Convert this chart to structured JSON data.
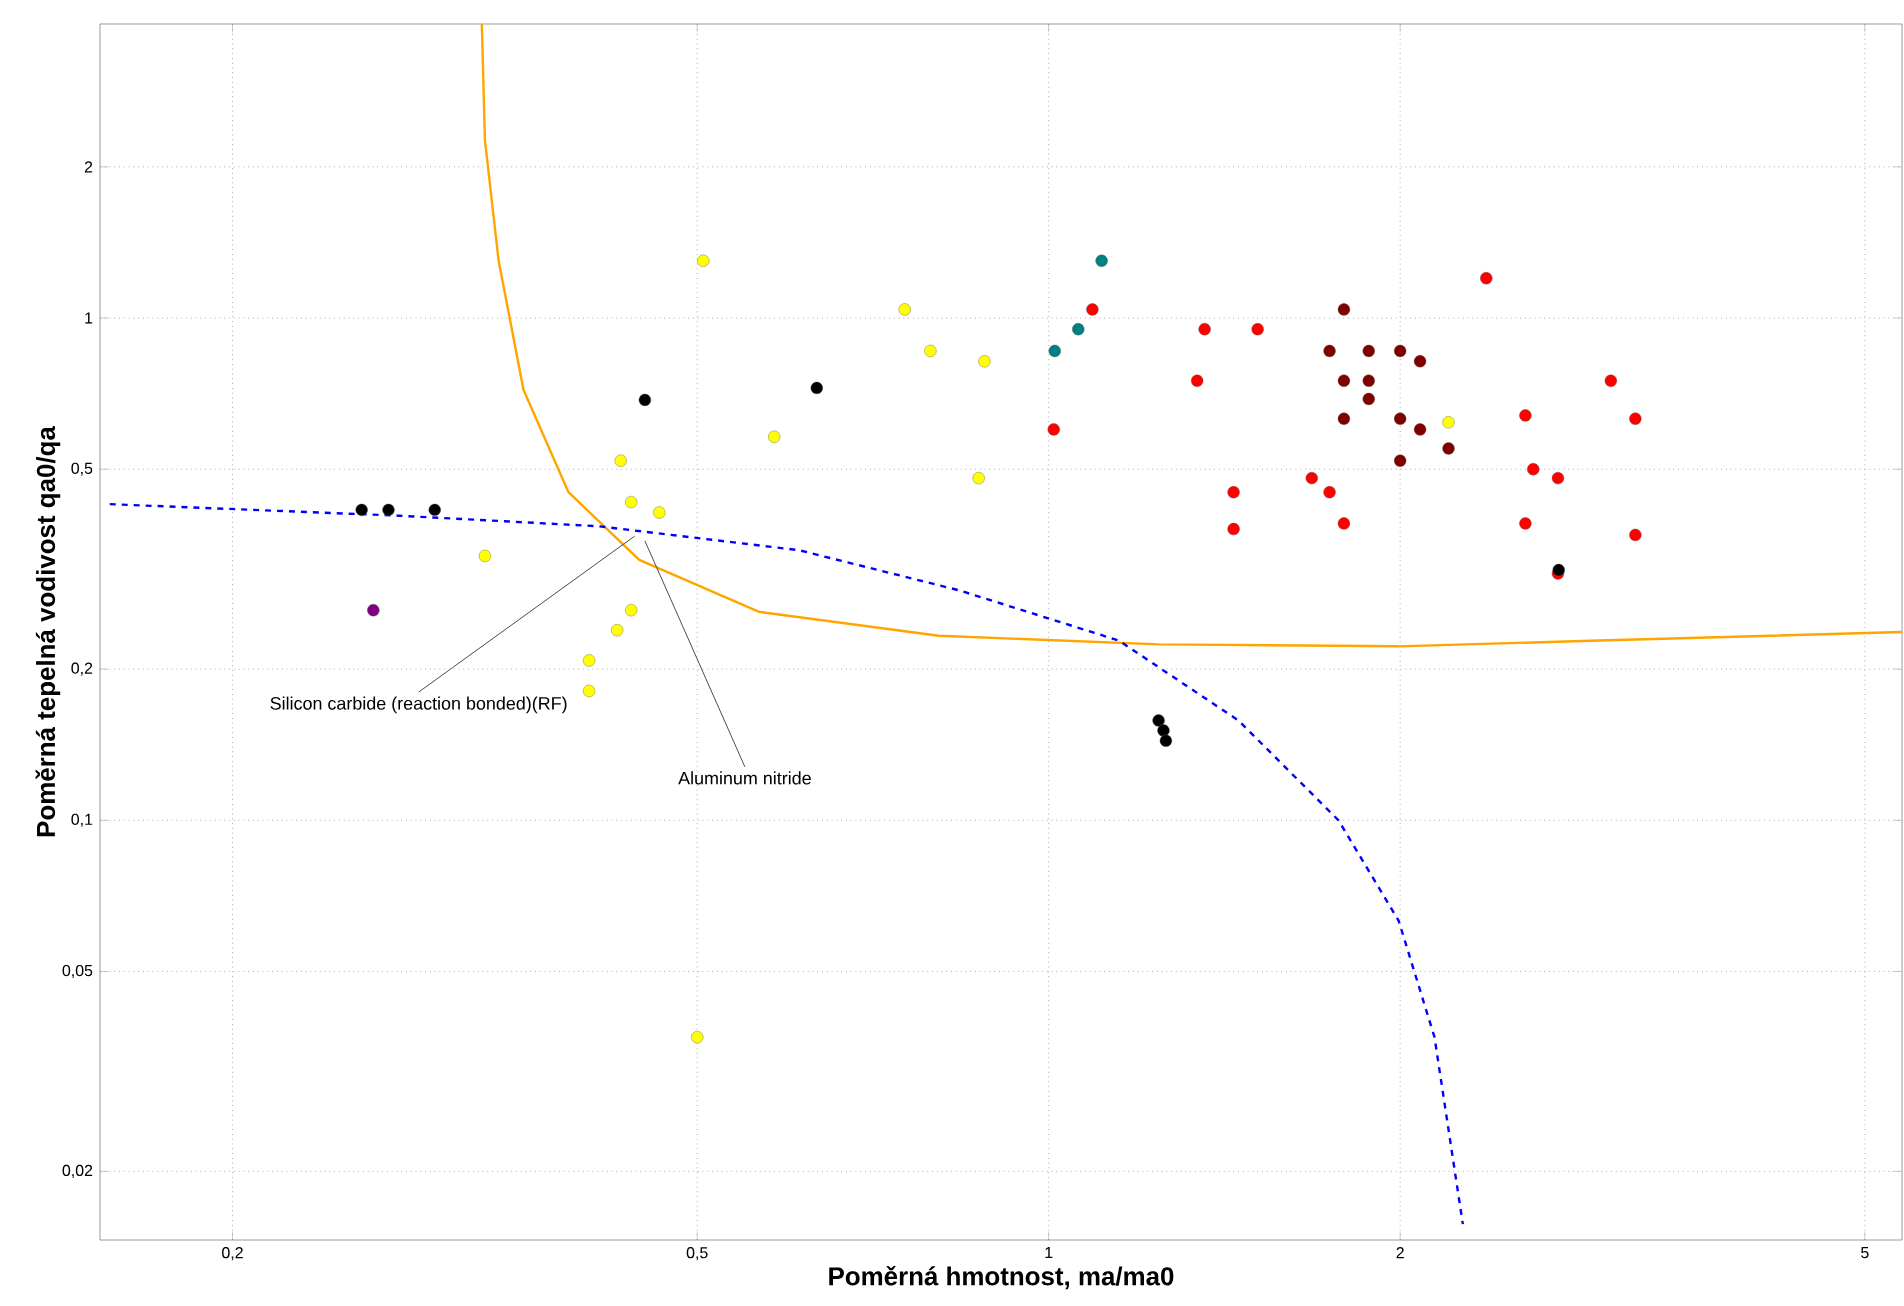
{
  "chart_data": {
    "type": "scatter",
    "xlabel": "Poměrná hmotnost, ma/ma0",
    "ylabel": "Poměrná tepelná vodivost qa0/qa",
    "log": "xy",
    "grid": true,
    "marker": "circle",
    "xlim": [
      0.154,
      5.38
    ],
    "ylim": [
      0.0146,
      3.85
    ],
    "xticks": [
      {
        "value": 0.2,
        "label": "0,2"
      },
      {
        "value": 0.5,
        "label": "0,5"
      },
      1,
      2,
      5
    ],
    "yticks": [
      {
        "value": 0.02,
        "label": "0,02"
      },
      {
        "value": 0.05,
        "label": "0,05"
      },
      {
        "value": 0.1,
        "label": "0,1"
      },
      {
        "value": 0.2,
        "label": "0,2"
      },
      {
        "value": 0.5,
        "label": "0,5"
      },
      1,
      2
    ],
    "series": [
      {
        "color": "#000000",
        "x": [
          0.258,
          0.272,
          0.298,
          0.451,
          0.633,
          1.242,
          1.254,
          1.26,
          2.734
        ],
        "values": [
          0.415,
          0.415,
          0.415,
          0.687,
          0.726,
          0.158,
          0.151,
          0.144,
          0.315
        ]
      },
      {
        "color": "#800080",
        "x": [
          0.264
        ],
        "values": [
          0.262
        ]
      },
      {
        "color": "#ffff00",
        "x": [
          0.329,
          0.439,
          0.43,
          0.464,
          0.439,
          0.427,
          0.404,
          0.404,
          0.506,
          0.582,
          0.753,
          0.792,
          0.871,
          0.881,
          0.5,
          2.2
        ],
        "values": [
          0.336,
          0.43,
          0.52,
          0.41,
          0.262,
          0.239,
          0.208,
          0.181,
          1.3,
          0.58,
          1.04,
          0.86,
          0.48,
          0.82,
          0.037,
          0.62
        ]
      },
      {
        "color": "#008080",
        "x": [
          1.012,
          1.06,
          1.11
        ],
        "values": [
          0.86,
          0.95,
          1.3
        ]
      },
      {
        "color": "#ff0000",
        "x": [
          1.09,
          1.34,
          1.01,
          1.36,
          1.51,
          1.44,
          1.44,
          1.68,
          1.74,
          1.79,
          2.37,
          2.56,
          2.6,
          2.73,
          2.56,
          3.03,
          3.18,
          3.18,
          2.73
        ],
        "values": [
          1.04,
          0.75,
          0.6,
          0.95,
          0.95,
          0.45,
          0.38,
          0.48,
          0.45,
          0.39,
          1.2,
          0.64,
          0.5,
          0.48,
          0.39,
          0.75,
          0.63,
          0.37,
          0.31
        ]
      },
      {
        "color": "#800000",
        "x": [
          1.79,
          1.74,
          1.88,
          1.79,
          1.88,
          2.0,
          2.08,
          1.79,
          1.88,
          2.0,
          2.08,
          2.2,
          2.0
        ],
        "values": [
          1.04,
          0.86,
          0.86,
          0.75,
          0.75,
          0.86,
          0.82,
          0.63,
          0.69,
          0.63,
          0.6,
          0.55,
          0.52
        ]
      },
      {
        "type": "line",
        "color": "#ffa500",
        "marker": "none",
        "line_style": "solid",
        "x": [
          0.327,
          0.329,
          0.338,
          0.355,
          0.388,
          0.446,
          0.565,
          0.805,
          1.242,
          1.995,
          2.96,
          5.38
        ],
        "values": [
          3.85,
          2.26,
          1.3,
          0.72,
          0.45,
          0.33,
          0.26,
          0.233,
          0.224,
          0.222,
          0.228,
          0.237
        ]
      },
      {
        "type": "line",
        "color": "#0000ff",
        "marker": "none",
        "line_style": "dashed",
        "x": [
          0.157,
          0.278,
          0.412,
          0.611,
          0.838,
          1.148,
          1.454,
          1.771,
          1.995,
          2.14,
          2.263
        ],
        "values": [
          0.426,
          0.404,
          0.385,
          0.345,
          0.287,
          0.228,
          0.158,
          0.1,
          0.063,
          0.037,
          0.0157
        ]
      }
    ],
    "annotations": [
      {
        "text": "Silicon carbide (reaction bonded)(RF)",
        "x": 0.442,
        "y": 0.368
      },
      {
        "text": "Aluminum nitride",
        "x": 0.451,
        "y": 0.36
      }
    ]
  }
}
